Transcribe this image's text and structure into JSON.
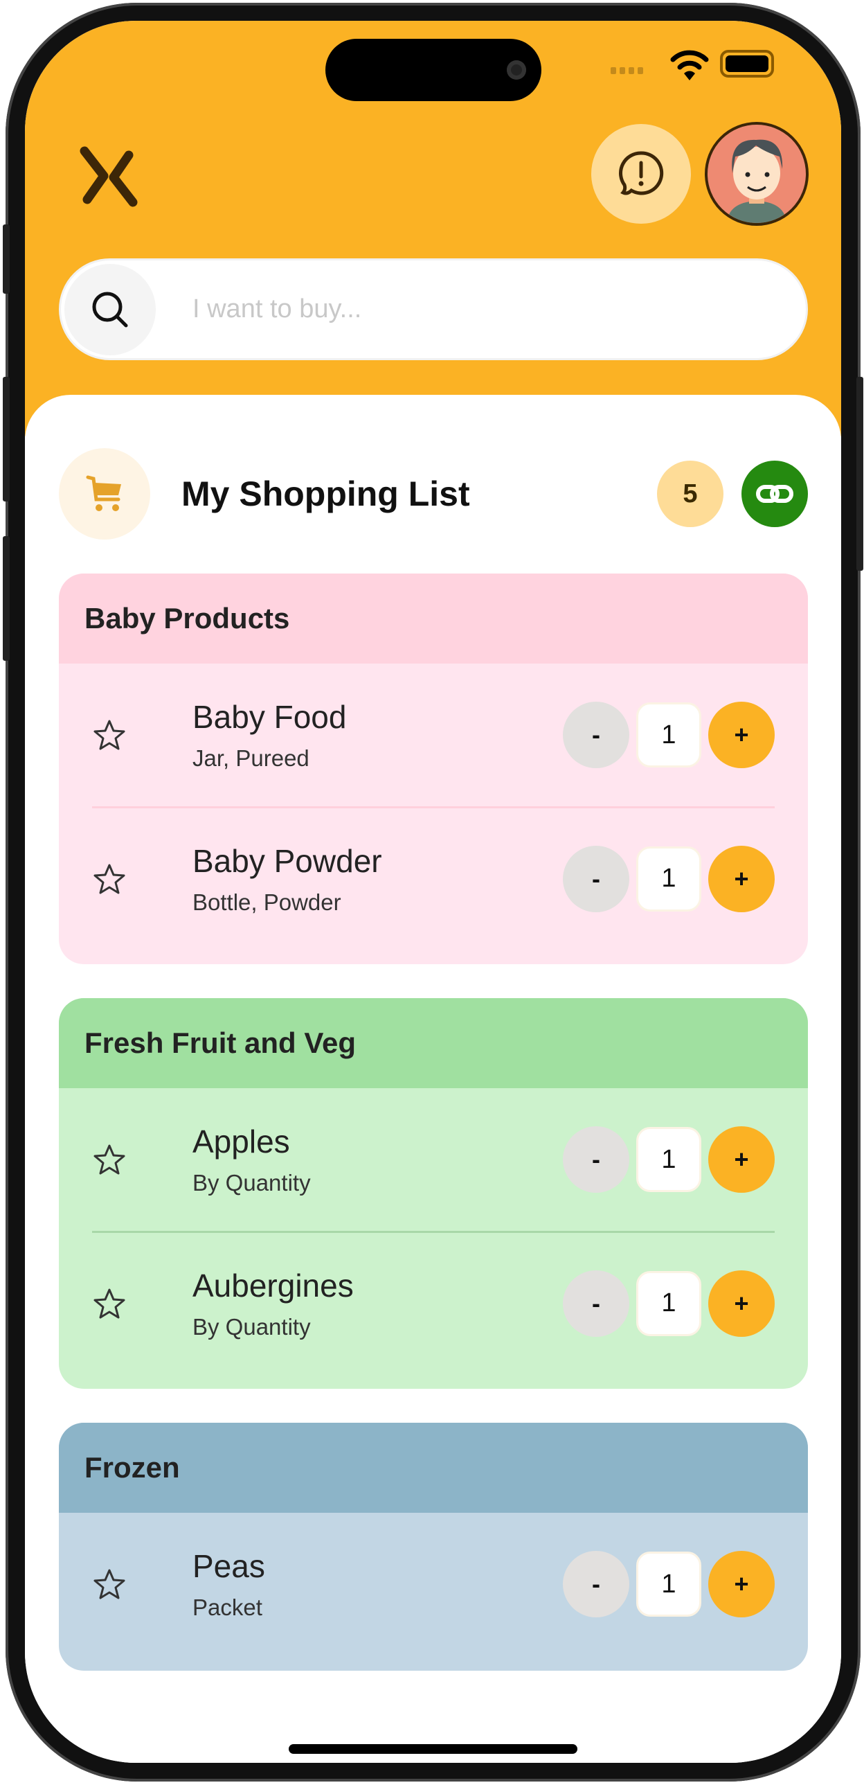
{
  "status_bar": {
    "wifi_icon": "wifi-icon",
    "battery_icon": "battery-icon"
  },
  "header": {
    "logo_icon": "logo-chevrons-icon",
    "alert_icon": "alert-chat-icon",
    "avatar": "user-avatar"
  },
  "search": {
    "placeholder": "I want to buy...",
    "value": ""
  },
  "list": {
    "title": "My Shopping List",
    "count": "5",
    "share_icon": "link-icon",
    "cart_icon": "cart-icon"
  },
  "colors": {
    "accent": "#FBB224",
    "share": "#258A10"
  },
  "categories": [
    {
      "name": "Baby Products",
      "head": "#FFD3DF",
      "body": "#FFE5EF",
      "divider": "#FFD0DC",
      "items": [
        {
          "name": "Baby Food",
          "sub": "Jar, Pureed",
          "qty": "1"
        },
        {
          "name": "Baby Powder",
          "sub": "Bottle, Powder",
          "qty": "1"
        }
      ]
    },
    {
      "name": "Fresh Fruit and Veg",
      "head": "#A0E0A0",
      "body": "#CCF2CC",
      "divider": "#A8D8A8",
      "items": [
        {
          "name": "Apples",
          "sub": "By Quantity",
          "qty": "1"
        },
        {
          "name": "Aubergines",
          "sub": "By Quantity",
          "qty": "1"
        }
      ]
    },
    {
      "name": "Frozen",
      "head": "#8CB4C8",
      "body": "#C2D6E4",
      "divider": "#9ab8cc",
      "items": [
        {
          "name": "Peas",
          "sub": "Packet",
          "qty": "1"
        }
      ]
    }
  ],
  "stepper": {
    "minus": "-",
    "plus": "+"
  }
}
